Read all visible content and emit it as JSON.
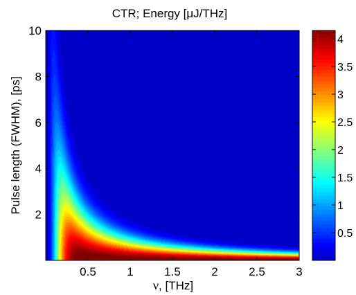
{
  "chart_data": {
    "type": "heatmap",
    "title": "CTR; Energy [μJ/THz]",
    "xlabel_symbol": "ν",
    "xlabel_rest": ", [THz]",
    "ylabel": "Pulse length (FWHM), [ps]",
    "xlim": [
      0.0,
      3.0
    ],
    "ylim": [
      0.0,
      10.0
    ],
    "x_ticks": [
      0.5,
      1,
      1.5,
      2,
      2.5,
      3
    ],
    "x_tick_labels": [
      "0.5",
      "1",
      "1.5",
      "2",
      "2.5",
      "3"
    ],
    "y_ticks": [
      2,
      4,
      6,
      8,
      10
    ],
    "y_tick_labels": [
      "2",
      "4",
      "6",
      "8",
      "10"
    ],
    "colorbar": {
      "colormap": "jet",
      "clim": [
        0.0,
        4.15
      ],
      "ticks": [
        0.5,
        1,
        1.5,
        2,
        2.5,
        3,
        3.5,
        4
      ],
      "tick_labels": [
        "0.5",
        "1",
        "1.5",
        "2",
        "2.5",
        "3",
        "3.5",
        "4"
      ]
    },
    "peak_value": 4.15,
    "description_of_field": "Energy peaks near ν≈0.3 THz at very short pulse length (~0.1 ps) and decays rapidly with increasing pulse length; elsewhere ~0."
  },
  "colors": {
    "background": "#ffffff",
    "axis": "#000000",
    "low": "#00008f",
    "high": "#7f0000"
  }
}
